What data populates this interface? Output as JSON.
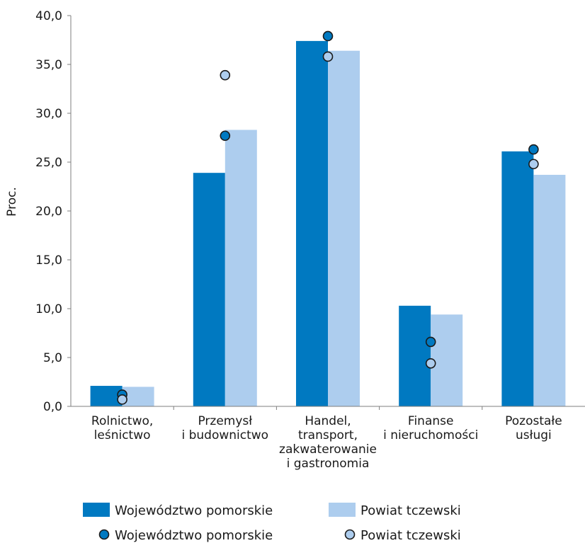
{
  "chart_data": {
    "type": "bar",
    "ylabel": "Proc.",
    "ylim": [
      0,
      40
    ],
    "y_ticks": [
      "0,0",
      "5,0",
      "10,0",
      "15,0",
      "20,0",
      "25,0",
      "30,0",
      "35,0",
      "40,0"
    ],
    "categories": [
      [
        "Rolnictwo,",
        "leśnictwo"
      ],
      [
        "Przemysł",
        "i budownictwo"
      ],
      [
        "Handel,",
        "transport,",
        "zakwaterowanie",
        "i gastronomia"
      ],
      [
        "Finanse",
        "i nieruchomości"
      ],
      [
        "Pozostałe",
        "usługi"
      ]
    ],
    "series": [
      {
        "name": "Województwo pomorskie",
        "kind": "bar",
        "color": "#0079c1",
        "values": [
          2.1,
          23.9,
          37.4,
          10.3,
          26.1
        ]
      },
      {
        "name": "Powiat tczewski",
        "kind": "bar",
        "color": "#adcdee",
        "values": [
          2.0,
          28.3,
          36.4,
          9.4,
          23.7
        ]
      },
      {
        "name": "Województwo pomorskie",
        "kind": "point",
        "color": "#0079c1",
        "values": [
          1.2,
          27.7,
          37.9,
          6.6,
          26.3
        ]
      },
      {
        "name": "Powiat tczewski",
        "kind": "point",
        "color": "#adcdee",
        "values": [
          0.7,
          33.9,
          35.8,
          4.4,
          24.8
        ]
      }
    ],
    "legend_position": "bottom",
    "grid": false
  }
}
